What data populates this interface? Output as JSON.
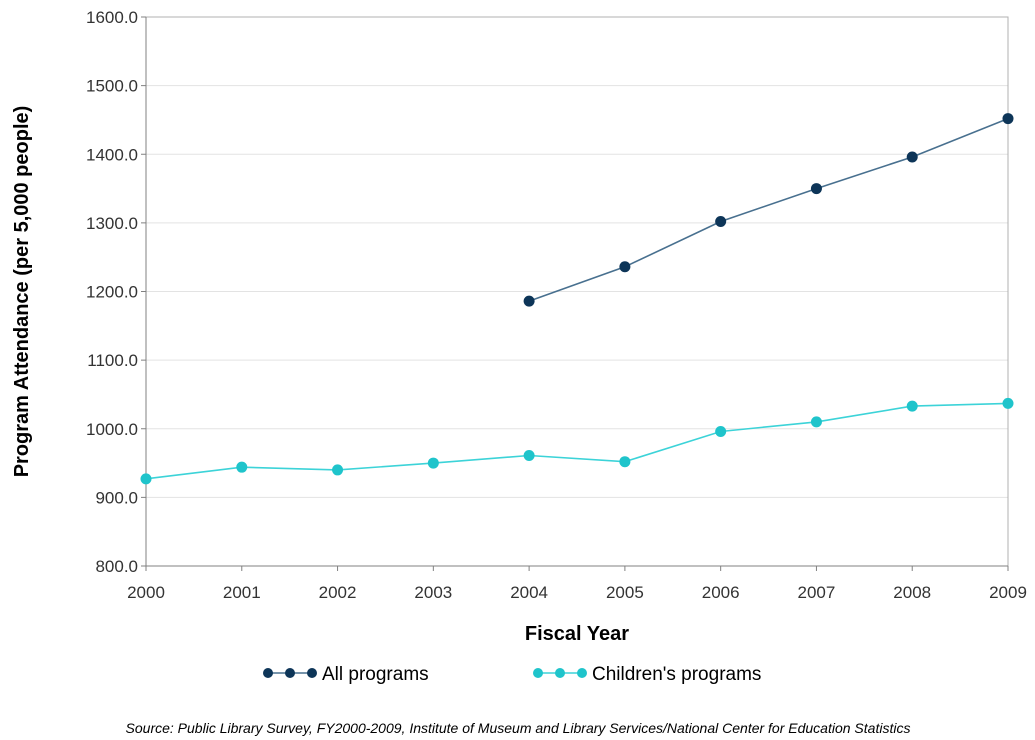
{
  "chart_data": {
    "type": "line",
    "xlabel": "Fiscal Year",
    "ylabel": "Program Attendance (per 5,000 people)",
    "x": [
      2000,
      2001,
      2002,
      2003,
      2004,
      2005,
      2006,
      2007,
      2008,
      2009
    ],
    "xticks": [
      "2000",
      "2001",
      "2002",
      "2003",
      "2004",
      "2005",
      "2006",
      "2007",
      "2008",
      "2009"
    ],
    "ylim": [
      800,
      1600
    ],
    "yticks": [
      "800.0",
      "900.0",
      "1000.0",
      "1100.0",
      "1200.0",
      "1300.0",
      "1400.0",
      "1500.0",
      "1600.0"
    ],
    "grid": true,
    "legend_position": "bottom",
    "series": [
      {
        "name": "All programs",
        "color": "#0d3558",
        "line_color": "#48708f",
        "x": [
          2004,
          2005,
          2006,
          2007,
          2008,
          2009
        ],
        "values": [
          1186,
          1236,
          1302,
          1350,
          1396,
          1452
        ]
      },
      {
        "name": "Children's programs",
        "color": "#1fc4cb",
        "line_color": "#3cd3d8",
        "x": [
          2000,
          2001,
          2002,
          2003,
          2004,
          2005,
          2006,
          2007,
          2008,
          2009
        ],
        "values": [
          927,
          944,
          940,
          950,
          961,
          952,
          996,
          1010,
          1033,
          1037
        ]
      }
    ],
    "source": "Source: Public Library Survey, FY2000-2009, Institute of Museum and Library Services/National Center for Education Statistics"
  }
}
